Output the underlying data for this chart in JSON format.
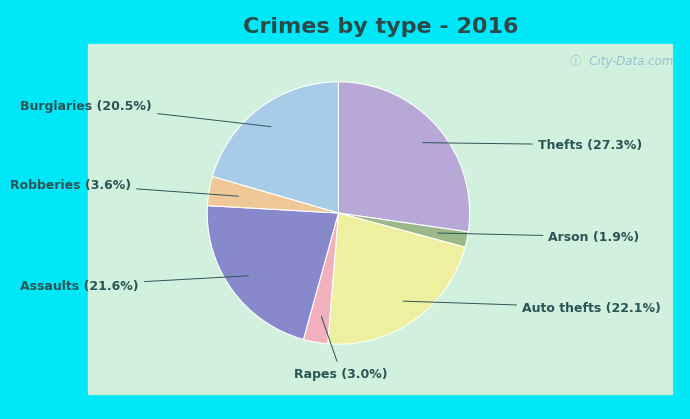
{
  "title": "Crimes by type - 2016",
  "labels": [
    "Thefts (27.3%)",
    "Arson (1.9%)",
    "Auto thefts (22.1%)",
    "Rapes (3.0%)",
    "Assaults (21.6%)",
    "Robberies (3.6%)",
    "Burglaries (20.5%)"
  ],
  "values": [
    27.3,
    1.9,
    22.1,
    3.0,
    21.6,
    3.6,
    20.5
  ],
  "colors": [
    "#b8a8d8",
    "#9ab88a",
    "#eef0a0",
    "#f0b0bc",
    "#8888cc",
    "#f0c898",
    "#a8cce8"
  ],
  "background_cyan": "#00e8f8",
  "background_green_top": "#c8edd8",
  "background_green_bottom": "#d8f0e0",
  "title_fontsize": 16,
  "title_color": "#2a4a4a",
  "label_color": "#2a5555",
  "label_fontsize": 9,
  "watermark": "City-Data.com"
}
